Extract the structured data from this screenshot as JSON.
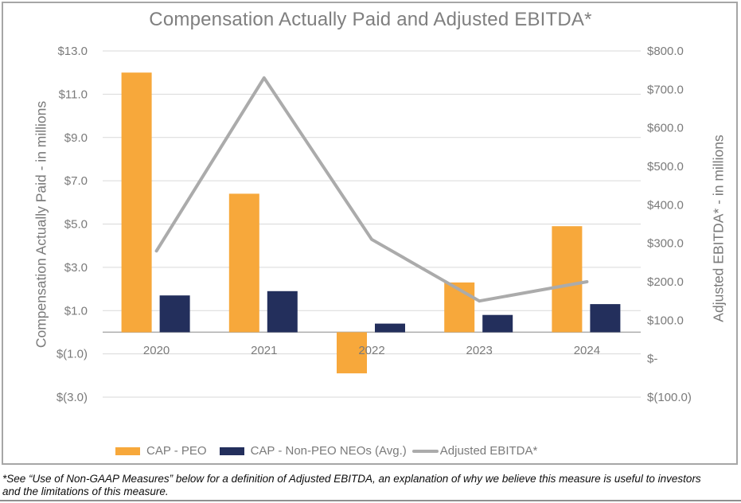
{
  "chart_data": {
    "type": "combo-bar-line",
    "title": "Compensation Actually Paid and Adjusted EBITDA*",
    "categories": [
      "2020",
      "2021",
      "2022",
      "2023",
      "2024"
    ],
    "bar_series": [
      {
        "name": "CAP - PEO",
        "color": "#F7A83B",
        "axis": "left",
        "values": [
          12.0,
          6.4,
          -1.9,
          2.3,
          4.9
        ]
      },
      {
        "name": "CAP - Non-PEO NEOs (Avg.)",
        "color": "#232F5C",
        "axis": "left",
        "values": [
          1.7,
          1.9,
          0.4,
          0.8,
          1.3
        ]
      }
    ],
    "line_series": {
      "name": "Adjusted EBITDA*",
      "color": "#ABABAB",
      "axis": "right",
      "values": [
        280,
        730,
        310,
        150,
        200
      ]
    },
    "left_axis": {
      "title": "Compensation Actually Paid - in millions",
      "min": -3,
      "max": 13,
      "ticks": [
        {
          "label": "$13.0",
          "value": 13
        },
        {
          "label": "$11.0",
          "value": 11
        },
        {
          "label": "$9.0",
          "value": 9
        },
        {
          "label": "$7.0",
          "value": 7
        },
        {
          "label": "$5.0",
          "value": 5
        },
        {
          "label": "$3.0",
          "value": 3
        },
        {
          "label": "$1.0",
          "value": 1
        },
        {
          "label": "$(1.0)",
          "value": -1
        },
        {
          "label": "$(3.0)",
          "value": -3
        }
      ]
    },
    "right_axis": {
      "title": "Adjusted EBITDA* - in millions",
      "min": -100,
      "max": 800,
      "ticks": [
        {
          "label": "$800.0",
          "value": 800
        },
        {
          "label": "$700.0",
          "value": 700
        },
        {
          "label": "$600.0",
          "value": 600
        },
        {
          "label": "$500.0",
          "value": 500
        },
        {
          "label": "$400.0",
          "value": 400
        },
        {
          "label": "$300.0",
          "value": 300
        },
        {
          "label": "$200.0",
          "value": 200
        },
        {
          "label": "$100.0",
          "value": 100
        },
        {
          "label": "$-",
          "value": 0
        },
        {
          "label": "$(100.0)",
          "value": -100
        }
      ]
    },
    "legend_position": "bottom",
    "grid": "horizontal",
    "colors": {
      "grid": "#D9D9D9",
      "axis_line": "#ACACAC",
      "tick_text": "#7A7A7A",
      "title_text": "#7F7F7F",
      "frame_border": "#A6A6A6"
    }
  },
  "footnote": {
    "line1": "*See “Use of Non-GAAP Measures” below for a definition of Adjusted EBITDA, an explanation of why we believe this measure is useful to investors",
    "line2": "and the limitations of this measure."
  }
}
